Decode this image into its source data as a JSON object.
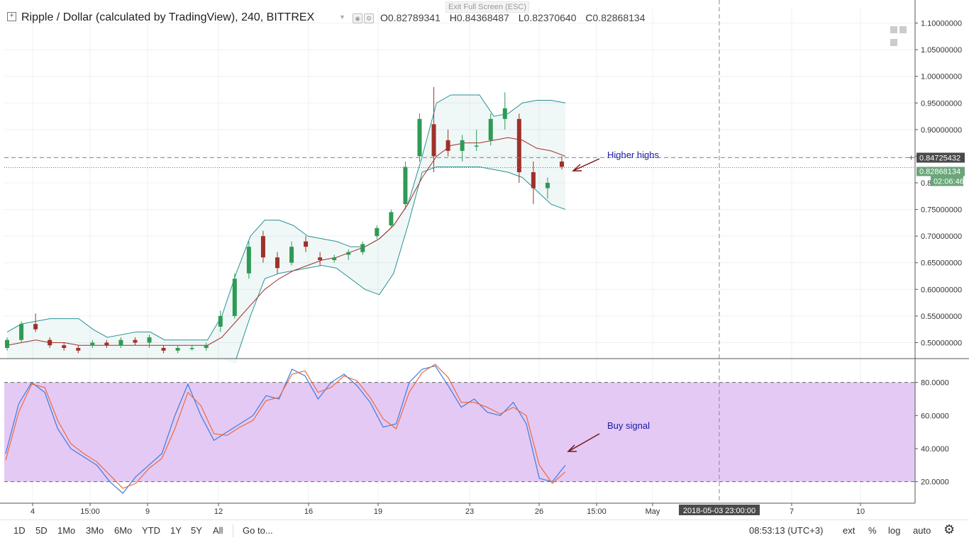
{
  "header": {
    "symbol_title": "Ripple / Dollar (calculated by TradingView), 240, BITTREX",
    "ohlc": {
      "o_label": "O",
      "o": "0.82789341",
      "h_label": "H",
      "h": "0.84368487",
      "l_label": "L",
      "l": "0.82370640",
      "c_label": "C",
      "c": "0.82868134"
    },
    "exit_fullscreen": "Exit Full Screen (ESC)"
  },
  "price_axis": {
    "ticks": [
      "1.10000000",
      "1.05000000",
      "1.00000000",
      "0.95000000",
      "0.90000000",
      "0.85000000",
      "0.80000000",
      "0.75000000",
      "0.70000000",
      "0.65000000",
      "0.60000000",
      "0.55000000",
      "0.50000000"
    ],
    "crosshair_label": "0.84725432",
    "last_price_label": "0.82868134",
    "countdown_label": "02:06:46",
    "crosshair_value": 0.84725432,
    "last_value": 0.82868134
  },
  "stoch_axis": {
    "ticks": [
      "80.0000",
      "60.0000",
      "40.0000",
      "20.0000"
    ]
  },
  "time_axis": {
    "ticks": [
      "4",
      "15:00",
      "9",
      "12",
      "16",
      "19",
      "23",
      "26",
      "15:00",
      "May",
      "7",
      "10"
    ],
    "crosshair_label": "2018-05-03 23:00:00"
  },
  "annotations": {
    "higher_highs": "Higher highs",
    "buy_signal": "Buy signal"
  },
  "bottom_bar": {
    "ranges": [
      "1D",
      "5D",
      "1Mo",
      "3Mo",
      "6Mo",
      "YTD",
      "1Y",
      "5Y",
      "All"
    ],
    "goto": "Go to...",
    "clock": "08:53:13 (UTC+3)",
    "ext": "ext",
    "percent": "%",
    "log": "log",
    "auto": "auto"
  },
  "colors": {
    "up": "#2e9b55",
    "down": "#a0302a",
    "bb_band": "#2a9292",
    "bb_basis": "#a0302a",
    "stoch_k": "#3b7ddd",
    "stoch_d": "#ee6a3a",
    "stoch_fill": "#e4c9f5",
    "label_green": "#6aa57a"
  },
  "chart_data": [
    {
      "type": "candlestick",
      "title": "Ripple / Dollar (calculated by TradingView), 240, BITTREX",
      "ylim": [
        0.47,
        1.13
      ],
      "y_ticks": [
        0.5,
        0.55,
        0.6,
        0.65,
        0.7,
        0.75,
        0.8,
        0.85,
        0.9,
        0.95,
        1.0,
        1.05,
        1.1
      ],
      "bollinger_upper": [
        0.52,
        0.535,
        0.54,
        0.545,
        0.545,
        0.545,
        0.525,
        0.51,
        0.515,
        0.52,
        0.52,
        0.505,
        0.505,
        0.505,
        0.505,
        0.55,
        0.63,
        0.7,
        0.73,
        0.73,
        0.72,
        0.7,
        0.695,
        0.69,
        0.68,
        0.68,
        0.695,
        0.72,
        0.76,
        0.85,
        0.95,
        0.965,
        0.965,
        0.965,
        0.925,
        0.93,
        0.95,
        0.955,
        0.955,
        0.95
      ],
      "bollinger_basis": [
        0.495,
        0.5,
        0.505,
        0.5,
        0.5,
        0.495,
        0.495,
        0.495,
        0.495,
        0.495,
        0.495,
        0.495,
        0.495,
        0.495,
        0.495,
        0.51,
        0.54,
        0.57,
        0.6,
        0.62,
        0.635,
        0.645,
        0.655,
        0.66,
        0.67,
        0.68,
        0.695,
        0.72,
        0.76,
        0.81,
        0.85,
        0.87,
        0.875,
        0.875,
        0.88,
        0.885,
        0.88,
        0.865,
        0.86,
        0.85
      ],
      "bollinger_lower": [
        null,
        null,
        null,
        null,
        null,
        null,
        null,
        null,
        null,
        null,
        null,
        null,
        null,
        null,
        null,
        null,
        0.46,
        0.55,
        0.62,
        0.63,
        0.635,
        0.64,
        0.645,
        0.64,
        0.62,
        0.6,
        0.59,
        0.63,
        0.72,
        0.82,
        0.83,
        0.83,
        0.83,
        0.83,
        0.825,
        0.82,
        0.81,
        0.785,
        0.76,
        0.75
      ],
      "candles_ohlc": [
        [
          0.49,
          0.51,
          0.485,
          0.505
        ],
        [
          0.505,
          0.54,
          0.5,
          0.535
        ],
        [
          0.535,
          0.555,
          0.52,
          0.525
        ],
        [
          0.505,
          0.51,
          0.49,
          0.495
        ],
        [
          0.495,
          0.5,
          0.485,
          0.49
        ],
        [
          0.49,
          0.495,
          0.48,
          0.485
        ],
        [
          0.495,
          0.505,
          0.49,
          0.5
        ],
        [
          0.5,
          0.505,
          0.49,
          0.495
        ],
        [
          0.495,
          0.51,
          0.49,
          0.505
        ],
        [
          0.505,
          0.51,
          0.495,
          0.5
        ],
        [
          0.5,
          0.515,
          0.49,
          0.51
        ],
        [
          0.49,
          0.495,
          0.48,
          0.485
        ],
        [
          0.485,
          0.495,
          0.48,
          0.49
        ],
        [
          0.49,
          0.495,
          0.485,
          0.49
        ],
        [
          0.49,
          0.5,
          0.485,
          0.495
        ],
        [
          0.53,
          0.56,
          0.52,
          0.55
        ],
        [
          0.55,
          0.63,
          0.545,
          0.62
        ],
        [
          0.63,
          0.69,
          0.62,
          0.68
        ],
        [
          0.7,
          0.71,
          0.65,
          0.66
        ],
        [
          0.66,
          0.67,
          0.63,
          0.64
        ],
        [
          0.65,
          0.69,
          0.645,
          0.68
        ],
        [
          0.69,
          0.7,
          0.67,
          0.68
        ],
        [
          0.66,
          0.67,
          0.645,
          0.655
        ],
        [
          0.655,
          0.665,
          0.65,
          0.66
        ],
        [
          0.665,
          0.675,
          0.655,
          0.67
        ],
        [
          0.67,
          0.69,
          0.665,
          0.685
        ],
        [
          0.7,
          0.72,
          0.695,
          0.715
        ],
        [
          0.72,
          0.75,
          0.715,
          0.745
        ],
        [
          0.76,
          0.84,
          0.75,
          0.83
        ],
        [
          0.85,
          0.93,
          0.84,
          0.92
        ],
        [
          0.91,
          0.98,
          0.82,
          0.85
        ],
        [
          0.88,
          0.9,
          0.85,
          0.86
        ],
        [
          0.86,
          0.89,
          0.84,
          0.88
        ],
        [
          0.87,
          0.9,
          0.86,
          0.87
        ],
        [
          0.88,
          0.93,
          0.87,
          0.92
        ],
        [
          0.92,
          0.97,
          0.9,
          0.94
        ],
        [
          0.92,
          0.93,
          0.8,
          0.82
        ],
        [
          0.82,
          0.84,
          0.76,
          0.79
        ],
        [
          0.79,
          0.81,
          0.77,
          0.8
        ],
        [
          0.84,
          0.85,
          0.825,
          0.83
        ]
      ]
    },
    {
      "type": "line",
      "title": "",
      "ylim": [
        7,
        94
      ],
      "y_ticks": [
        20,
        40,
        60,
        80
      ],
      "band": [
        20,
        80
      ],
      "series": [
        {
          "values": [
            37,
            67,
            80,
            74,
            52,
            40,
            35,
            30,
            20,
            13,
            23,
            30,
            37,
            60,
            79,
            60,
            45,
            50,
            55,
            60,
            72,
            70,
            88,
            84,
            70,
            80,
            85,
            78,
            68,
            53,
            55,
            80,
            88,
            90,
            78,
            65,
            70,
            62,
            60,
            68,
            55,
            22,
            20,
            30
          ]
        },
        {
          "values": [
            33,
            62,
            79,
            77,
            57,
            43,
            37,
            32,
            24,
            16,
            19,
            28,
            34,
            52,
            74,
            66,
            49,
            48,
            53,
            57,
            69,
            71,
            85,
            87,
            74,
            77,
            84,
            81,
            71,
            58,
            52,
            74,
            86,
            91,
            83,
            68,
            68,
            65,
            61,
            65,
            60,
            30,
            19,
            26
          ]
        }
      ]
    }
  ]
}
